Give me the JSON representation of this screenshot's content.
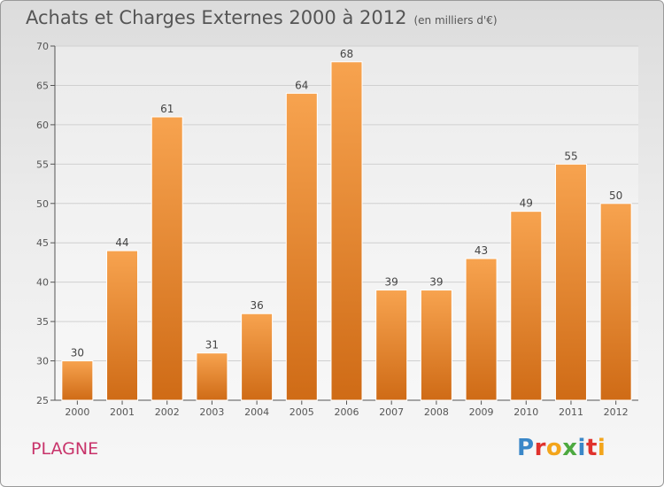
{
  "chart_data": {
    "type": "bar",
    "title": "Achats et Charges Externes 2000 à 2012",
    "subtitle": "(en milliers d'€)",
    "categories": [
      "2000",
      "2001",
      "2002",
      "2003",
      "2004",
      "2005",
      "2006",
      "2007",
      "2008",
      "2009",
      "2010",
      "2011",
      "2012"
    ],
    "values": [
      30,
      44,
      61,
      31,
      36,
      64,
      68,
      39,
      39,
      43,
      49,
      55,
      50
    ],
    "ylim": [
      25,
      70
    ],
    "yticks": [
      25,
      30,
      35,
      40,
      45,
      50,
      55,
      60,
      65,
      70
    ],
    "xlabel": "",
    "ylabel": "",
    "grid": true,
    "bar_color_top": "#f7a34f",
    "bar_color_bottom": "#cf6b16"
  },
  "footer": {
    "place": "PLAGNE",
    "logo_letters": [
      {
        "char": "P",
        "color": "#3a87c8"
      },
      {
        "char": "r",
        "color": "#e0322d"
      },
      {
        "char": "o",
        "color": "#f3a51b"
      },
      {
        "char": "x",
        "color": "#4da940"
      },
      {
        "char": "i",
        "color": "#3a87c8"
      },
      {
        "char": "t",
        "color": "#e0322d"
      },
      {
        "char": "i",
        "color": "#f3a51b"
      }
    ]
  }
}
